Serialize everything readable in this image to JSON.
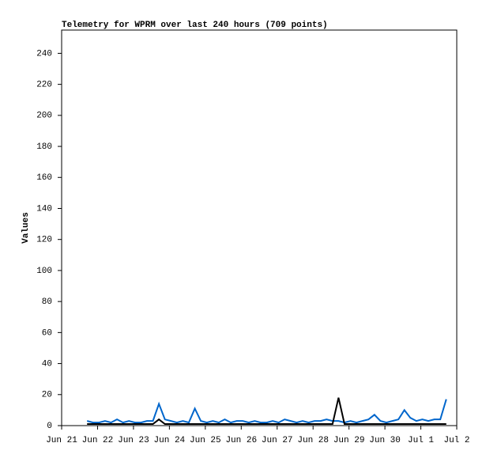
{
  "chart_data": {
    "type": "line",
    "title": "Telemetry for WPRM over last 240 hours (709 points)",
    "y_label": "Values",
    "x": [
      17,
      21,
      25,
      29,
      33,
      37,
      41,
      45,
      49,
      53,
      57,
      61,
      65,
      69,
      73,
      77,
      81,
      85,
      89,
      93,
      97,
      101,
      105,
      109,
      113,
      117,
      121,
      125,
      129,
      133,
      137,
      141,
      145,
      149,
      153,
      157,
      161,
      165,
      169,
      173,
      177,
      181,
      185,
      189,
      193,
      197,
      201,
      205,
      209,
      213,
      217,
      221,
      225,
      229,
      233,
      237,
      241,
      245,
      249,
      253,
      257
    ],
    "series": [
      {
        "color": "#0066cc",
        "values": [
          3,
          2,
          2,
          3,
          2,
          4,
          2,
          3,
          2,
          2,
          3,
          3,
          14,
          4,
          3,
          2,
          3,
          2,
          11,
          3,
          2,
          3,
          2,
          4,
          2,
          3,
          3,
          2,
          3,
          2,
          2,
          3,
          2,
          4,
          3,
          2,
          3,
          2,
          3,
          3,
          4,
          3,
          3,
          2,
          3,
          2,
          3,
          4,
          7,
          3,
          2,
          3,
          4,
          10,
          5,
          3,
          4,
          3,
          4,
          4,
          17
        ]
      },
      {
        "color": "#000000",
        "values": [
          1,
          1,
          1,
          1,
          1,
          1,
          1,
          1,
          1,
          1,
          1,
          1,
          4,
          1,
          1,
          1,
          1,
          1,
          1,
          1,
          1,
          1,
          1,
          1,
          1,
          1,
          1,
          1,
          1,
          1,
          1,
          1,
          1,
          1,
          1,
          1,
          1,
          1,
          1,
          1,
          1,
          1,
          18,
          1,
          1,
          1,
          1,
          1,
          1,
          1,
          1,
          1,
          1,
          1,
          1,
          1,
          1,
          1,
          1,
          1,
          1
        ]
      }
    ],
    "xlim": [
      0,
      264
    ],
    "xticks": [
      {
        "value": 0,
        "label": "Jun 21"
      },
      {
        "value": 24,
        "label": "Jun 22"
      },
      {
        "value": 48,
        "label": "Jun 23"
      },
      {
        "value": 72,
        "label": "Jun 24"
      },
      {
        "value": 96,
        "label": "Jun 25"
      },
      {
        "value": 120,
        "label": "Jun 26"
      },
      {
        "value": 144,
        "label": "Jun 27"
      },
      {
        "value": 168,
        "label": "Jun 28"
      },
      {
        "value": 192,
        "label": "Jun 29"
      },
      {
        "value": 216,
        "label": "Jun 30"
      },
      {
        "value": 240,
        "label": "Jul 1"
      },
      {
        "value": 264,
        "label": "Jul 2"
      }
    ],
    "ylim": [
      0,
      255
    ],
    "yticks": [
      0,
      20,
      40,
      60,
      80,
      100,
      120,
      140,
      160,
      180,
      200,
      220,
      240
    ]
  }
}
